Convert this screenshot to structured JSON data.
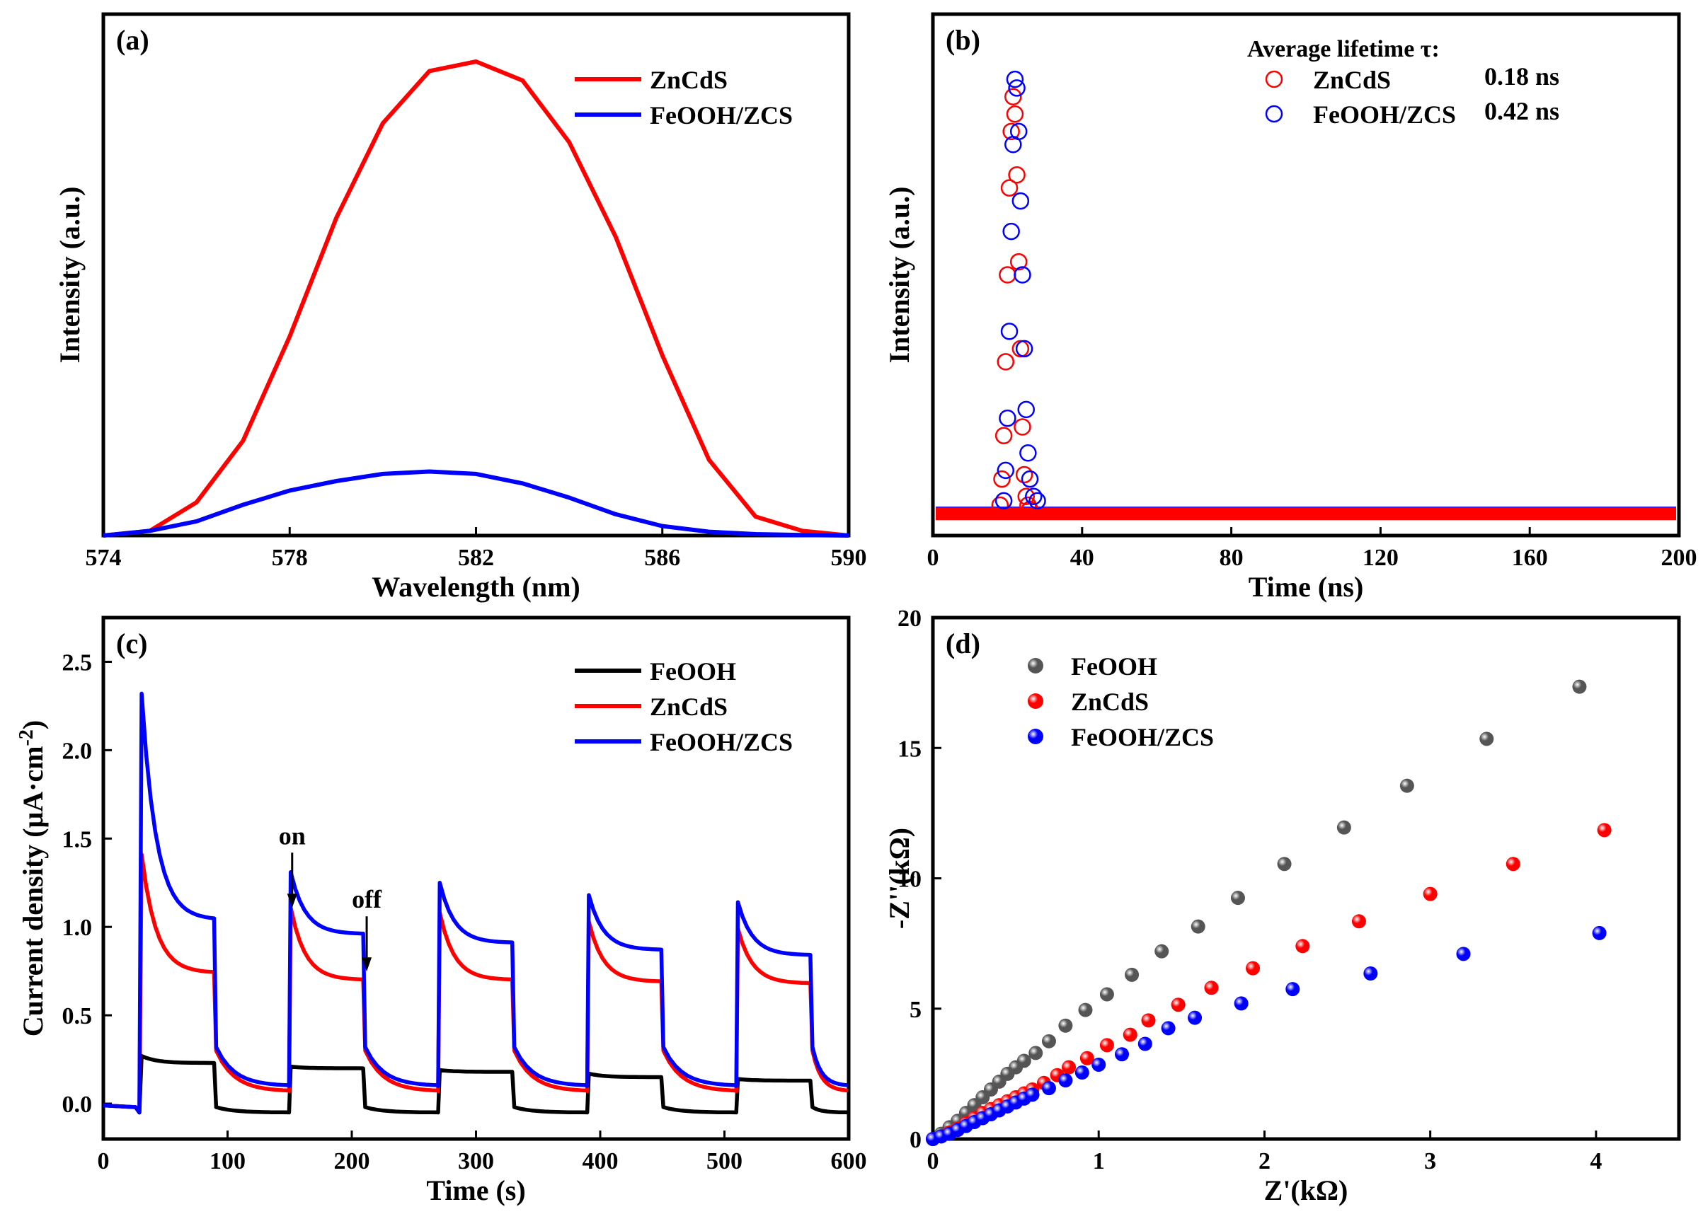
{
  "chart_data": [
    {
      "panel": "(a)",
      "type": "line",
      "xlabel": "Wavelength (nm)",
      "ylabel": "Intensity (a.u.)",
      "xlim": [
        574,
        590
      ],
      "ylim": [
        0,
        1.1
      ],
      "xticks": [
        574,
        578,
        582,
        586,
        590
      ],
      "yticks": [],
      "legend": "top-right",
      "series": [
        {
          "name": "ZnCdS",
          "color": "#ff0000",
          "x": [
            574,
            575,
            576,
            577,
            578,
            579,
            580,
            581,
            582,
            583,
            584,
            585,
            586,
            587,
            588,
            589,
            590
          ],
          "y": [
            0.0,
            0.01,
            0.07,
            0.2,
            0.42,
            0.67,
            0.87,
            0.98,
            1.0,
            0.96,
            0.83,
            0.63,
            0.38,
            0.16,
            0.04,
            0.01,
            0.0
          ]
        },
        {
          "name": "FeOOH/ZCS",
          "color": "#0000ff",
          "x": [
            574,
            575,
            576,
            577,
            578,
            579,
            580,
            581,
            582,
            583,
            584,
            585,
            586,
            587,
            588,
            589,
            590
          ],
          "y": [
            0.0,
            0.01,
            0.03,
            0.065,
            0.095,
            0.115,
            0.13,
            0.135,
            0.13,
            0.11,
            0.08,
            0.045,
            0.02,
            0.008,
            0.003,
            0.001,
            0.0
          ]
        }
      ]
    },
    {
      "panel": "(b)",
      "type": "scatter",
      "xlabel": "Time (ns)",
      "ylabel": "Intensity (a.u.)",
      "xlim": [
        0,
        200
      ],
      "ylim": [
        -0.05,
        1.15
      ],
      "xticks": [
        0,
        40,
        80,
        120,
        160,
        200
      ],
      "yticks": [],
      "legend": "top-right",
      "legend_title": "Average lifetime τ:",
      "series": [
        {
          "name": "ZnCdS",
          "lifetime": "0.18 ns",
          "color": "#ff0000",
          "x": [
            18,
            18.5,
            19,
            19.5,
            20,
            20.5,
            21,
            21.5,
            22,
            22.5,
            23,
            23.5,
            24,
            24.5,
            25,
            25.5,
            26
          ],
          "y": [
            0.02,
            0.08,
            0.18,
            0.35,
            0.55,
            0.75,
            0.88,
            0.96,
            0.92,
            0.78,
            0.58,
            0.38,
            0.2,
            0.09,
            0.04,
            0.02,
            0.01
          ]
        },
        {
          "name": "FeOOH/ZCS",
          "lifetime": "0.42 ns",
          "color": "#0000ff",
          "x": [
            19,
            19.5,
            20,
            20.5,
            21,
            21.5,
            22,
            22.5,
            23,
            23.5,
            24,
            24.5,
            25,
            25.5,
            26,
            27,
            28
          ],
          "y": [
            0.03,
            0.1,
            0.22,
            0.42,
            0.65,
            0.85,
            1.0,
            0.98,
            0.88,
            0.72,
            0.55,
            0.38,
            0.24,
            0.14,
            0.08,
            0.04,
            0.03
          ]
        }
      ],
      "baselines": [
        {
          "series": "FeOOH/ZCS",
          "color": "#0000ff",
          "x": [
            0,
            200
          ],
          "y": [
            0.01,
            0.01
          ]
        },
        {
          "series": "ZnCdS",
          "color": "#ff0000",
          "x": [
            0,
            200
          ],
          "y": [
            0.0,
            0.0
          ]
        }
      ]
    },
    {
      "panel": "(c)",
      "type": "line",
      "xlabel": "Time (s)",
      "ylabel_main": "Current density (μA·cm",
      "ylabel_sup": "-2",
      "ylabel_close": ")",
      "xlim": [
        0,
        600
      ],
      "ylim": [
        -0.2,
        2.75
      ],
      "xticks": [
        0,
        100,
        200,
        300,
        400,
        500,
        600
      ],
      "yticks": [
        0.0,
        0.5,
        1.0,
        1.5,
        2.0,
        2.5
      ],
      "ytick_labels": [
        "0.0",
        "0.5",
        "1.0",
        "1.5",
        "2.0",
        "2.5"
      ],
      "legend": "top-right",
      "on_times": [
        30,
        150,
        270,
        390,
        510
      ],
      "off_times": [
        90,
        210,
        330,
        450,
        570
      ],
      "annotations": [
        {
          "text": "on",
          "x": 152,
          "y": 1.42
        },
        {
          "text": "off",
          "x": 212,
          "y": 1.06
        }
      ],
      "series": [
        {
          "name": "FeOOH",
          "color": "#000000",
          "dark_start": -0.02,
          "dark_end": -0.05,
          "peaks": [
            0.27,
            0.21,
            0.19,
            0.17,
            0.14
          ],
          "plateaus": [
            0.23,
            0.2,
            0.18,
            0.15,
            0.13
          ]
        },
        {
          "name": "ZnCdS",
          "color": "#ff0000",
          "dark_start": 0.3,
          "dark_end": 0.07,
          "peaks": [
            1.41,
            1.11,
            1.08,
            1.03,
            0.99
          ],
          "plateaus": [
            0.74,
            0.7,
            0.7,
            0.69,
            0.68
          ]
        },
        {
          "name": "FeOOH/ZCS",
          "color": "#0000ff",
          "dark_start": 0.32,
          "dark_end": 0.1,
          "peaks": [
            2.32,
            1.31,
            1.25,
            1.18,
            1.14
          ],
          "plateaus": [
            1.04,
            0.96,
            0.91,
            0.87,
            0.84
          ]
        }
      ]
    },
    {
      "panel": "(d)",
      "type": "scatter",
      "xlabel": "Z'(kΩ)",
      "ylabel": "-Z''(kΩ)",
      "xlim": [
        0,
        4.5
      ],
      "ylim": [
        0,
        20
      ],
      "xticks": [
        0,
        1,
        2,
        3,
        4
      ],
      "yticks": [
        0,
        5,
        10,
        15,
        20
      ],
      "legend": "top-left",
      "series": [
        {
          "name": "FeOOH",
          "color": "#555555",
          "x": [
            0,
            0.05,
            0.1,
            0.15,
            0.2,
            0.25,
            0.3,
            0.35,
            0.4,
            0.45,
            0.5,
            0.55,
            0.62,
            0.7,
            0.8,
            0.92,
            1.05,
            1.2,
            1.38,
            1.6,
            1.84,
            2.12,
            2.48,
            2.86,
            3.34,
            3.9
          ],
          "y": [
            0,
            0.2,
            0.45,
            0.7,
            1.0,
            1.3,
            1.6,
            1.9,
            2.2,
            2.5,
            2.75,
            3.0,
            3.3,
            3.75,
            4.35,
            4.95,
            5.55,
            6.3,
            7.2,
            8.15,
            9.25,
            10.55,
            11.95,
            13.55,
            15.35,
            17.35
          ]
        },
        {
          "name": "ZnCdS",
          "color": "#ff0000",
          "x": [
            0,
            0.05,
            0.1,
            0.15,
            0.2,
            0.25,
            0.3,
            0.35,
            0.4,
            0.45,
            0.5,
            0.55,
            0.6,
            0.67,
            0.75,
            0.82,
            0.93,
            1.05,
            1.19,
            1.3,
            1.48,
            1.68,
            1.93,
            2.23,
            2.57,
            3.0,
            3.5,
            4.05
          ],
          "y": [
            0,
            0.1,
            0.25,
            0.4,
            0.6,
            0.8,
            1.0,
            1.15,
            1.3,
            1.45,
            1.6,
            1.75,
            1.9,
            2.15,
            2.45,
            2.75,
            3.1,
            3.6,
            4.0,
            4.55,
            5.15,
            5.8,
            6.55,
            7.4,
            8.35,
            9.4,
            10.55,
            11.85
          ]
        },
        {
          "name": "FeOOH/ZCS",
          "color": "#0000ff",
          "x": [
            0,
            0.05,
            0.1,
            0.15,
            0.2,
            0.25,
            0.3,
            0.35,
            0.4,
            0.45,
            0.5,
            0.55,
            0.6,
            0.7,
            0.8,
            0.9,
            1.0,
            1.14,
            1.28,
            1.42,
            1.58,
            1.86,
            2.17,
            2.64,
            3.2,
            4.02
          ],
          "y": [
            0,
            0.1,
            0.2,
            0.35,
            0.5,
            0.65,
            0.8,
            0.95,
            1.1,
            1.25,
            1.4,
            1.55,
            1.7,
            1.95,
            2.25,
            2.55,
            2.85,
            3.25,
            3.65,
            4.25,
            4.65,
            5.2,
            5.75,
            6.35,
            7.1,
            7.9
          ]
        }
      ]
    }
  ]
}
